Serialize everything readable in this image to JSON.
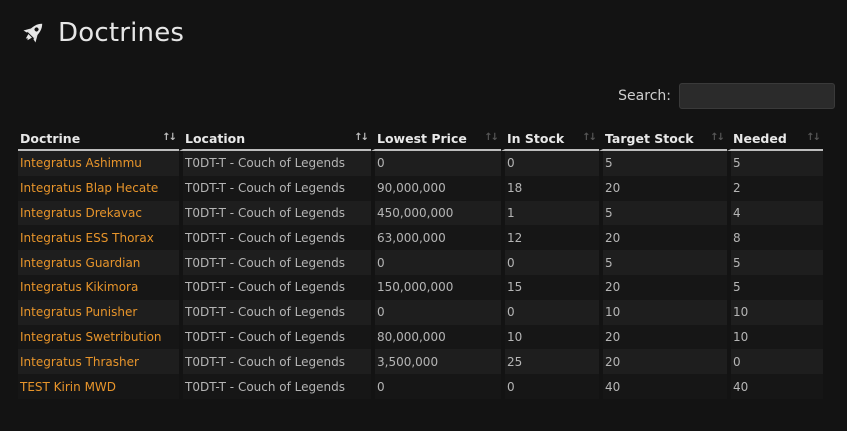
{
  "header": {
    "title": "Doctrines",
    "icon": "rocket-icon"
  },
  "search": {
    "label": "Search:",
    "value": "",
    "placeholder": ""
  },
  "table": {
    "columns": [
      "Doctrine",
      "Location",
      "Lowest Price",
      "In Stock",
      "Target Stock",
      "Needed"
    ],
    "rows": [
      [
        "Integratus Ashimmu",
        "T0DT-T - Couch of Legends",
        "0",
        "0",
        "5",
        "5"
      ],
      [
        "Integratus Blap Hecate",
        "T0DT-T - Couch of Legends",
        "90,000,000",
        "18",
        "20",
        "2"
      ],
      [
        "Integratus Drekavac",
        "T0DT-T - Couch of Legends",
        "450,000,000",
        "1",
        "5",
        "4"
      ],
      [
        "Integratus ESS Thorax",
        "T0DT-T - Couch of Legends",
        "63,000,000",
        "12",
        "20",
        "8"
      ],
      [
        "Integratus Guardian",
        "T0DT-T - Couch of Legends",
        "0",
        "0",
        "5",
        "5"
      ],
      [
        "Integratus Kikimora",
        "T0DT-T - Couch of Legends",
        "150,000,000",
        "15",
        "20",
        "5"
      ],
      [
        "Integratus Punisher",
        "T0DT-T - Couch of Legends",
        "0",
        "0",
        "10",
        "10"
      ],
      [
        "Integratus Swetribution",
        "T0DT-T - Couch of Legends",
        "80,000,000",
        "10",
        "20",
        "10"
      ],
      [
        "Integratus Thrasher",
        "T0DT-T - Couch of Legends",
        "3,500,000",
        "25",
        "20",
        "0"
      ],
      [
        "TEST Kirin MWD",
        "T0DT-T - Couch of Legends",
        "0",
        "0",
        "40",
        "40"
      ]
    ]
  },
  "colors": {
    "background": "#131313",
    "link": "#e8952b",
    "row_odd": "#1e1e1e",
    "row_even": "#161616"
  }
}
